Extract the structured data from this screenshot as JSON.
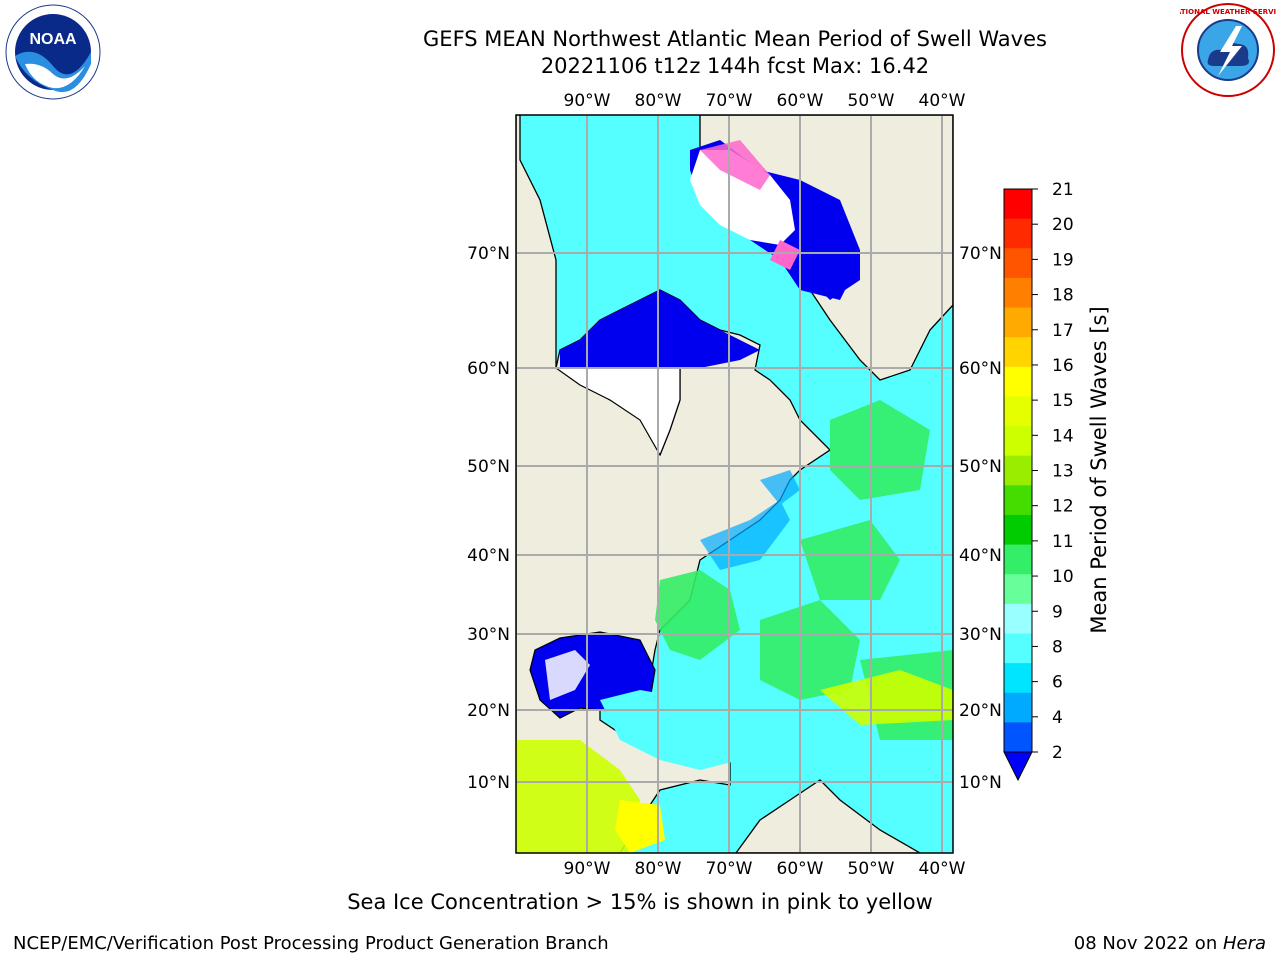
{
  "title": {
    "line1": "GEFS MEAN Northwest Atlantic Mean Period of Swell Waves",
    "line2": "20221106 t12z 144h fcst   Max: 16.42"
  },
  "map": {
    "lon_labels": [
      "90°W",
      "80°W",
      "70°W",
      "60°W",
      "50°W",
      "40°W"
    ],
    "lat_labels": [
      "70°N",
      "60°N",
      "50°N",
      "40°N",
      "30°N",
      "20°N",
      "10°N"
    ],
    "land_color": "#efedde",
    "ice_color": "#ff66cc"
  },
  "colorbar": {
    "label": "Mean Period of Swell Waves [s]",
    "ticks": [
      "21",
      "20",
      "19",
      "18",
      "17",
      "16",
      "15",
      "14",
      "13",
      "12",
      "11",
      "10",
      "9",
      "8",
      "6",
      "4",
      "2"
    ],
    "colors": [
      "#ff0000",
      "#ff2a00",
      "#ff5500",
      "#ff7f00",
      "#ffaa00",
      "#ffd400",
      "#ffff00",
      "#e5ff00",
      "#ccff00",
      "#99ee00",
      "#44dd00",
      "#00cc00",
      "#33ee66",
      "#66ff99",
      "#99ffff",
      "#55ffff",
      "#00e5ff",
      "#00aaff",
      "#0055ff"
    ],
    "extend_color": "#0000ff"
  },
  "note": "Sea Ice Concentration > 15% is shown in pink to yellow",
  "footer": {
    "left": "NCEP/EMC/Verification Post Processing Product Generation Branch",
    "right_prefix": "08 Nov 2022 on ",
    "right_host": "Hera"
  },
  "logos": {
    "noaa_text": "NOAA",
    "nws_text": "NATIONAL WEATHER SERVICE"
  }
}
